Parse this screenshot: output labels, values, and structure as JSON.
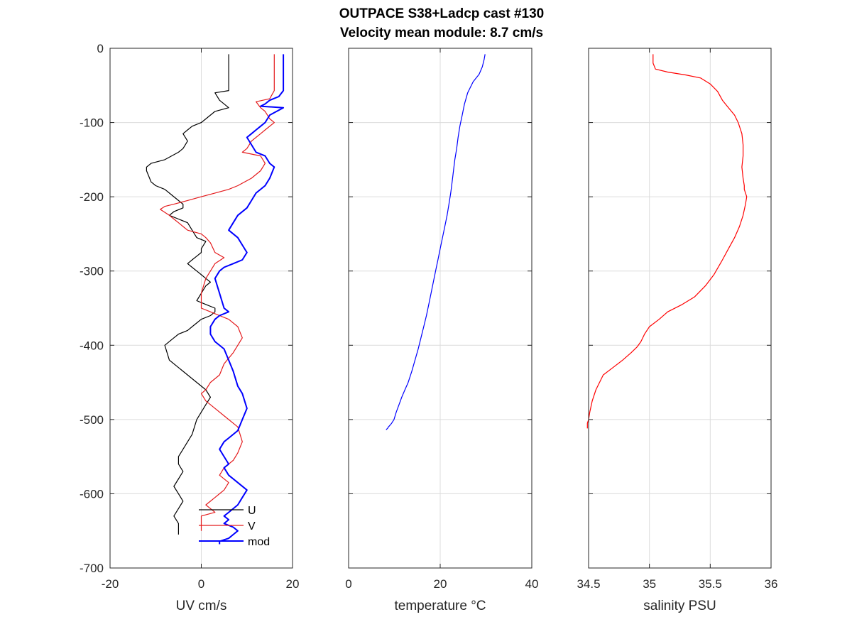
{
  "title_line1": "OUTPACE S38+Ladcp cast #130",
  "title_line2": "Velocity mean module:  8.7 cm/s",
  "colors": {
    "U": "#000000",
    "V": "#e41a1c",
    "mod": "#0000ff",
    "temperature": "#0000ff",
    "salinity": "#ff0000",
    "grid": "#dcdcdc"
  },
  "chart_data": [
    {
      "type": "line",
      "xlabel": "UV cm/s",
      "ylabel": "",
      "xlim": [
        -20,
        20
      ],
      "ylim": [
        -700,
        0
      ],
      "xticks": [
        -20,
        0,
        20
      ],
      "yticks": [
        0,
        -100,
        -200,
        -300,
        -400,
        -500,
        -600,
        -700
      ],
      "grid": true,
      "legend": "bottom-right",
      "series": [
        {
          "name": "U",
          "x": [
            6,
            6,
            6,
            6,
            3,
            4,
            6,
            3,
            2,
            0,
            -2,
            -3,
            -4,
            -3,
            -4,
            -5,
            -8,
            -11,
            -12,
            -12,
            -11,
            -10,
            -8,
            -7,
            -6,
            -5,
            -4,
            -4,
            -6,
            -7,
            -5,
            -3,
            -2,
            -1,
            1,
            0,
            0,
            -1,
            -2,
            -3,
            -2,
            -1,
            0,
            1,
            2,
            1,
            0,
            -1,
            1,
            3,
            3,
            2,
            0,
            -1,
            -2,
            -3,
            -5,
            -6,
            -7,
            -8,
            -7,
            -5,
            -3,
            -1,
            1,
            2,
            1,
            0,
            -1,
            -2,
            -4,
            -5,
            -5,
            -4,
            -5,
            -6,
            -5,
            -4,
            -5,
            -6,
            -5,
            -5,
            -5
          ],
          "y": [
            -8,
            -20,
            -40,
            -57,
            -60,
            -70,
            -80,
            -85,
            -90,
            -100,
            -105,
            -110,
            -115,
            -125,
            -135,
            -140,
            -150,
            -155,
            -160,
            -165,
            -180,
            -185,
            -190,
            -195,
            -200,
            -205,
            -210,
            -215,
            -220,
            -225,
            -230,
            -235,
            -245,
            -255,
            -260,
            -270,
            -275,
            -280,
            -285,
            -290,
            -295,
            -300,
            -305,
            -310,
            -315,
            -320,
            -330,
            -340,
            -345,
            -350,
            -355,
            -360,
            -365,
            -370,
            -375,
            -380,
            -385,
            -390,
            -395,
            -400,
            -420,
            -430,
            -440,
            -450,
            -460,
            -470,
            -480,
            -490,
            -500,
            -520,
            -540,
            -550,
            -560,
            -570,
            -580,
            -590,
            -600,
            -610,
            -620,
            -630,
            -640,
            -650,
            -655
          ]
        },
        {
          "name": "V",
          "x": [
            16,
            16,
            16,
            16,
            15,
            12,
            13,
            14,
            15,
            16,
            14,
            13,
            12,
            11,
            10,
            9,
            13,
            14,
            13,
            11,
            8,
            6,
            3,
            0,
            -3,
            -6,
            -8,
            -9,
            -7,
            -6,
            -5,
            -4,
            -3,
            0,
            1,
            2,
            3,
            5,
            3,
            2,
            1,
            0,
            0,
            2,
            4,
            6,
            8,
            9,
            8,
            7,
            5,
            4,
            2,
            1,
            0,
            1,
            3,
            5,
            8,
            9,
            8,
            7,
            5,
            4,
            6,
            5,
            4,
            3,
            2,
            1,
            2,
            3,
            0,
            0,
            0
          ],
          "y": [
            -8,
            -20,
            -40,
            -57,
            -68,
            -72,
            -80,
            -85,
            -95,
            -100,
            -110,
            -115,
            -120,
            -125,
            -135,
            -140,
            -145,
            -155,
            -165,
            -175,
            -185,
            -190,
            -195,
            -200,
            -205,
            -210,
            -213,
            -217,
            -225,
            -230,
            -235,
            -240,
            -245,
            -250,
            -255,
            -262,
            -275,
            -282,
            -290,
            -300,
            -310,
            -330,
            -350,
            -355,
            -360,
            -365,
            -375,
            -390,
            -400,
            -410,
            -425,
            -440,
            -450,
            -460,
            -465,
            -475,
            -485,
            -495,
            -510,
            -530,
            -545,
            -555,
            -565,
            -575,
            -585,
            -595,
            -600,
            -605,
            -610,
            -615,
            -620,
            -625,
            -630,
            -640,
            -650
          ]
        },
        {
          "name": "mod",
          "x": [
            18,
            18,
            18,
            18,
            17,
            15,
            14,
            13,
            18,
            15,
            14,
            13,
            12,
            11,
            10,
            11,
            12,
            14,
            15,
            16,
            15,
            14,
            12,
            11,
            10,
            8,
            7,
            6,
            8,
            9,
            10,
            9,
            7,
            5,
            4,
            3,
            4,
            5,
            6,
            4,
            3,
            2,
            2,
            3,
            5,
            6,
            7,
            8,
            9,
            10,
            9,
            8,
            6,
            5,
            4,
            5,
            6,
            5,
            6,
            8,
            10,
            9,
            8,
            6,
            5,
            6,
            5,
            7,
            8,
            7,
            6,
            5,
            4,
            4,
            4
          ],
          "y": [
            -8,
            -20,
            -40,
            -57,
            -65,
            -70,
            -75,
            -78,
            -80,
            -90,
            -100,
            -105,
            -110,
            -115,
            -120,
            -130,
            -140,
            -145,
            -155,
            -160,
            -175,
            -185,
            -195,
            -205,
            -215,
            -225,
            -235,
            -245,
            -255,
            -265,
            -275,
            -285,
            -290,
            -295,
            -300,
            -310,
            -330,
            -350,
            -355,
            -360,
            -365,
            -375,
            -385,
            -395,
            -405,
            -420,
            -435,
            -455,
            -465,
            -485,
            -500,
            -515,
            -525,
            -530,
            -540,
            -550,
            -560,
            -565,
            -575,
            -585,
            -595,
            -605,
            -615,
            -625,
            -630,
            -635,
            -640,
            -645,
            -650,
            -655,
            -660,
            -662,
            -664,
            -666,
            -668
          ]
        }
      ]
    },
    {
      "type": "line",
      "xlabel": "temperature °C",
      "xlim": [
        0,
        40
      ],
      "ylim": [
        -700,
        0
      ],
      "xticks": [
        0,
        20,
        40
      ],
      "grid": true,
      "series": [
        {
          "x": [
            29.8,
            29.6,
            29.2,
            28.5,
            27.2,
            26.0,
            25.3,
            24.8,
            24.3,
            23.9,
            23.6,
            23.2,
            22.9,
            22.6,
            22.3,
            21.9,
            21.5,
            21.0,
            20.5,
            20.0,
            19.5,
            19.0,
            18.5,
            18.0,
            17.5,
            17.0,
            16.4,
            15.8,
            15.2,
            14.5,
            13.8,
            13.0,
            12.3,
            11.6,
            11.0,
            10.4,
            9.9,
            9.4,
            9.0,
            8.7,
            8.5,
            8.3,
            8.2
          ],
          "y": [
            -8,
            -15,
            -25,
            -35,
            -45,
            -60,
            -75,
            -90,
            -105,
            -120,
            -135,
            -150,
            -165,
            -180,
            -195,
            -210,
            -225,
            -240,
            -255,
            -270,
            -285,
            -300,
            -315,
            -330,
            -345,
            -360,
            -375,
            -390,
            -405,
            -420,
            -435,
            -450,
            -460,
            -470,
            -480,
            -490,
            -500,
            -505,
            -508,
            -510,
            -512,
            -513,
            -514
          ]
        }
      ]
    },
    {
      "type": "line",
      "xlabel": "salinity PSU",
      "xlim": [
        34.5,
        36
      ],
      "ylim": [
        -700,
        0
      ],
      "xticks": [
        34.5,
        35,
        35.5,
        36
      ],
      "grid": true,
      "series": [
        {
          "x": [
            35.03,
            35.03,
            35.05,
            35.15,
            35.3,
            35.42,
            35.5,
            35.56,
            35.6,
            35.65,
            35.7,
            35.73,
            35.76,
            35.77,
            35.77,
            35.76,
            35.77,
            35.78,
            35.78,
            35.79,
            35.8,
            35.79,
            35.77,
            35.74,
            35.7,
            35.65,
            35.6,
            35.53,
            35.46,
            35.37,
            35.27,
            35.15,
            35.08,
            35.0,
            34.96,
            34.93,
            34.9,
            34.85,
            34.78,
            34.7,
            34.62,
            34.56,
            34.53,
            34.51,
            34.5,
            34.49,
            34.49
          ],
          "y": [
            -8,
            -20,
            -28,
            -32,
            -36,
            -40,
            -48,
            -58,
            -70,
            -80,
            -90,
            -100,
            -115,
            -130,
            -145,
            -160,
            -175,
            -185,
            -190,
            -195,
            -200,
            -210,
            -225,
            -240,
            -255,
            -270,
            -285,
            -305,
            -320,
            -335,
            -345,
            -355,
            -365,
            -375,
            -385,
            -395,
            -402,
            -410,
            -420,
            -430,
            -440,
            -460,
            -475,
            -490,
            -500,
            -505,
            -512
          ]
        }
      ]
    }
  ]
}
